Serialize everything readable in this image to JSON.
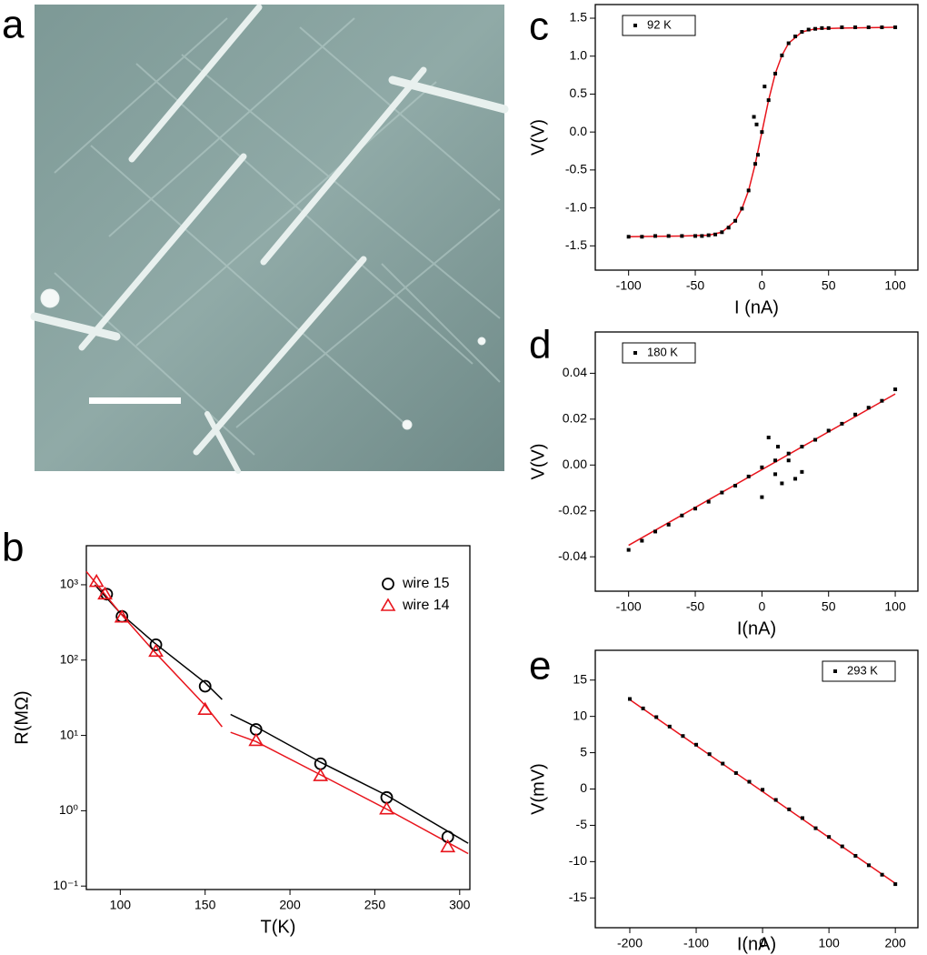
{
  "chart_data": [
    {
      "type": "image",
      "panel": "a"
    },
    {
      "type": "scatter",
      "panel": "b",
      "log_y": true,
      "legend": "upper right",
      "xlabel": "T(K)",
      "ylabel": "R(MΩ)",
      "xlim": [
        80,
        306
      ],
      "ylim": [
        0.09,
        3300
      ],
      "xticks": [
        100,
        150,
        200,
        250,
        300
      ],
      "yticks": [
        {
          "value": 0.1,
          "label": "10⁻¹"
        },
        {
          "value": 1,
          "label": "10⁰"
        },
        {
          "value": 10,
          "label": "10¹"
        },
        {
          "value": 100,
          "label": "10²"
        },
        {
          "value": 1000,
          "label": "10³"
        }
      ],
      "series": [
        {
          "name": "wire 15",
          "color": "#000000",
          "marker": "circle",
          "x": [
            92,
            101,
            121,
            150,
            180,
            218,
            257,
            293
          ],
          "values": [
            750,
            380,
            160,
            45,
            12,
            4.2,
            1.5,
            0.45
          ]
        },
        {
          "name": "wire 14",
          "color": "#e8141c",
          "marker": "triangle",
          "x": [
            86,
            91,
            101,
            121,
            150,
            180,
            218,
            257,
            293
          ],
          "values": [
            1100,
            750,
            370,
            130,
            22,
            8.5,
            2.9,
            1.05,
            0.33
          ]
        }
      ],
      "fits": [
        {
          "color": "#000000",
          "x": [
            85,
            100,
            120,
            150,
            160,
            null,
            165,
            180,
            218,
            257,
            305
          ],
          "values": [
            1000,
            420,
            170,
            50,
            30,
            null,
            19,
            13,
            4.4,
            1.6,
            0.37
          ]
        },
        {
          "color": "#e8141c",
          "x": [
            80,
            100,
            120,
            150,
            160,
            null,
            165,
            180,
            218,
            257,
            305
          ],
          "values": [
            1500,
            420,
            130,
            25,
            13,
            null,
            11,
            8.3,
            3,
            1.05,
            0.27
          ]
        }
      ]
    },
    {
      "type": "scatter",
      "panel": "c",
      "legend": "upper left",
      "xlabel": "I (nA)",
      "ylabel": "V(V)",
      "xlim": [
        -125,
        117
      ],
      "ylim": [
        -1.82,
        1.68
      ],
      "xticks": [
        -100,
        -50,
        0,
        50,
        100
      ],
      "yticks": [
        -1.5,
        {
          "value": -1,
          "label": "-1.0"
        },
        -0.5,
        {
          "value": 0,
          "label": "0.0"
        },
        0.5,
        {
          "value": 1,
          "label": "1.0"
        },
        1.5
      ],
      "series": [
        {
          "name": "92 K",
          "color": "#000000",
          "marker": "square",
          "x": [
            -100,
            -90,
            -80,
            -70,
            -60,
            -50,
            -45,
            -40,
            -35,
            -30,
            -25,
            -20,
            -15,
            -10,
            -6,
            -5,
            -4,
            -3,
            0,
            2,
            5,
            10,
            15,
            20,
            25,
            30,
            35,
            40,
            45,
            50,
            60,
            70,
            80,
            90,
            100
          ],
          "values": [
            -1.38,
            -1.38,
            -1.37,
            -1.37,
            -1.37,
            -1.37,
            -1.37,
            -1.36,
            -1.35,
            -1.32,
            -1.26,
            -1.17,
            -1.01,
            -0.77,
            0.2,
            -0.42,
            0.1,
            -0.3,
            0,
            0.6,
            0.42,
            0.77,
            1.01,
            1.17,
            1.26,
            1.32,
            1.35,
            1.36,
            1.37,
            1.37,
            1.38,
            1.38,
            1.38,
            1.38,
            1.38
          ]
        }
      ],
      "fits": [
        {
          "color": "#e8141c",
          "x": [
            -100,
            -60,
            -40,
            -30,
            -20,
            -15,
            -10,
            -5,
            0,
            5,
            10,
            15,
            20,
            30,
            40,
            60,
            100
          ],
          "values": [
            -1.38,
            -1.37,
            -1.36,
            -1.32,
            -1.17,
            -1.01,
            -0.77,
            -0.42,
            0,
            0.42,
            0.77,
            1.01,
            1.17,
            1.32,
            1.36,
            1.37,
            1.38
          ]
        }
      ]
    },
    {
      "type": "scatter",
      "panel": "d",
      "legend": "upper left",
      "xlabel": "I(nA)",
      "ylabel": "V(V)",
      "xlim": [
        -125,
        117
      ],
      "ylim": [
        -0.055,
        0.058
      ],
      "xticks": [
        -100,
        -50,
        0,
        50,
        100
      ],
      "yticks": [
        -0.04,
        -0.02,
        {
          "value": 0,
          "label": "0.00"
        },
        0.02,
        0.04
      ],
      "series": [
        {
          "name": "180 K",
          "color": "#000000",
          "marker": "square",
          "x": [
            -100,
            -90,
            -80,
            -70,
            -60,
            -50,
            -40,
            -30,
            -20,
            -10,
            0,
            10,
            20,
            30,
            40,
            50,
            60,
            70,
            80,
            90,
            100,
            5,
            10,
            15,
            20,
            25,
            0,
            30,
            12
          ],
          "values": [
            -0.037,
            -0.033,
            -0.029,
            -0.026,
            -0.022,
            -0.019,
            -0.016,
            -0.012,
            -0.009,
            -0.005,
            -0.001,
            0.002,
            0.005,
            0.008,
            0.011,
            0.015,
            0.018,
            0.022,
            0.025,
            0.028,
            0.033,
            0.012,
            -0.004,
            -0.008,
            0.002,
            -0.006,
            -0.014,
            -0.003,
            0.008
          ]
        }
      ],
      "fits": [
        {
          "color": "#e8141c",
          "x": [
            -100,
            100
          ],
          "values": [
            -0.035,
            0.031
          ]
        }
      ]
    },
    {
      "type": "scatter",
      "panel": "e",
      "legend": "upper right",
      "xlabel": "I(nA)",
      "ylabel": "V(mV)",
      "xlim": [
        -252,
        234
      ],
      "ylim": [
        -19.1,
        19.1
      ],
      "xticks": [
        -200,
        -100,
        0,
        100,
        200
      ],
      "yticks": [
        -15,
        -10,
        -5,
        0,
        5,
        10,
        15
      ],
      "series": [
        {
          "name": "293 K",
          "color": "#000000",
          "marker": "square",
          "x": [
            -200,
            -180,
            -160,
            -140,
            -120,
            -100,
            -80,
            -60,
            -40,
            -20,
            0,
            20,
            40,
            60,
            80,
            100,
            120,
            140,
            160,
            180,
            200
          ],
          "values": [
            12.4,
            11.1,
            9.9,
            8.6,
            7.3,
            6.1,
            4.8,
            3.5,
            2.2,
            1.0,
            -0.1,
            -1.5,
            -2.8,
            -4.0,
            -5.4,
            -6.6,
            -7.9,
            -9.2,
            -10.5,
            -11.8,
            -13.1
          ]
        }
      ],
      "fits": [
        {
          "color": "#e8141c",
          "x": [
            -200,
            200
          ],
          "values": [
            12.3,
            -13.0
          ]
        }
      ]
    }
  ]
}
